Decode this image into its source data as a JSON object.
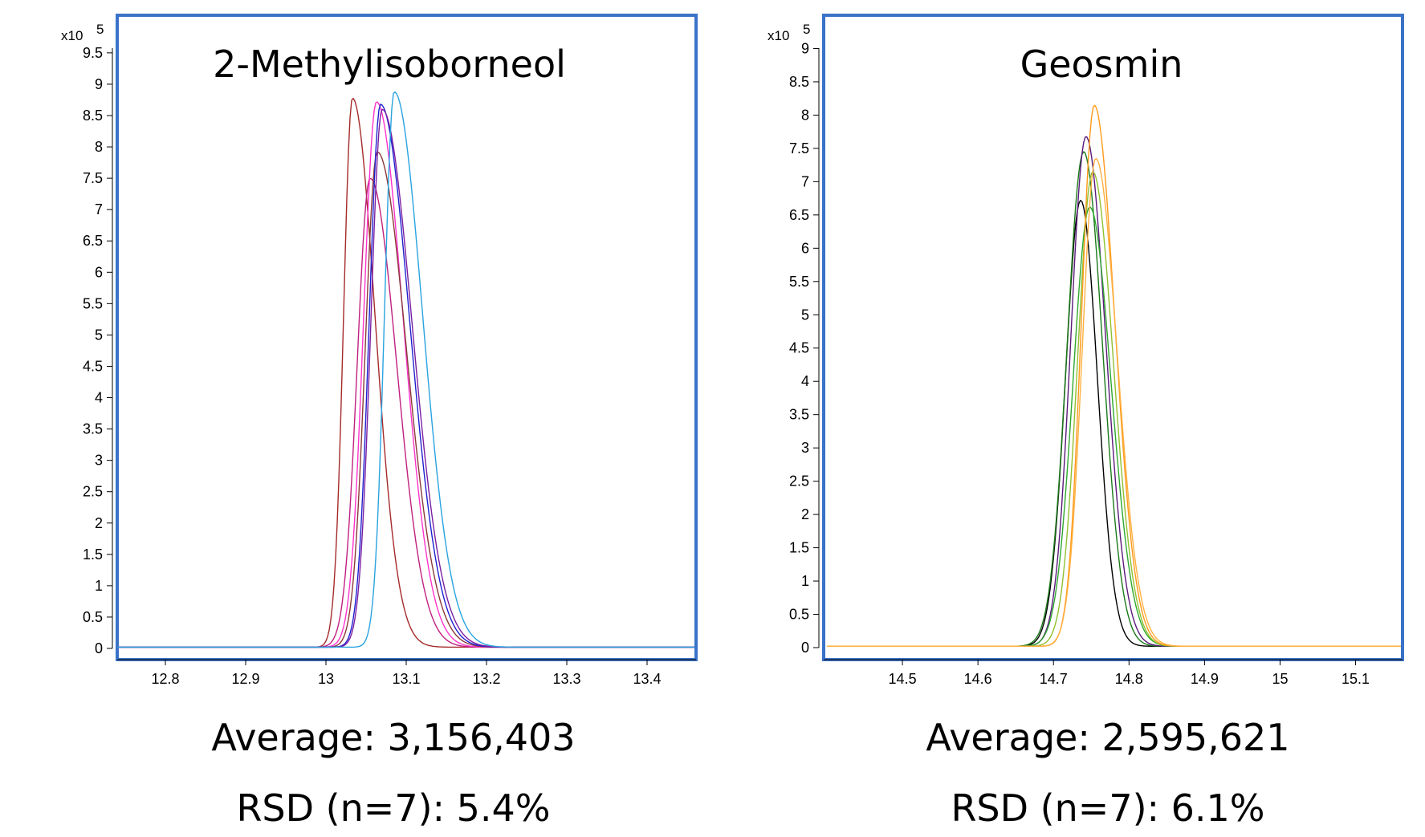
{
  "chart_data": [
    {
      "type": "line",
      "title": "2-Methylisoborneol",
      "exponent_label": "x10",
      "exponent_power": "5",
      "xlim": [
        12.74,
        13.46
      ],
      "ylim": [
        0,
        10.1
      ],
      "xticks": [
        12.8,
        12.9,
        13,
        13.1,
        13.2,
        13.3,
        13.4
      ],
      "xtick_labels": [
        "12.8",
        "12.9",
        "13",
        "13.1",
        "13.2",
        "13.3",
        "13.4"
      ],
      "yticks": [
        0,
        0.5,
        1,
        1.5,
        2,
        2.5,
        3,
        3.5,
        4,
        4.5,
        5,
        5.5,
        6,
        6.5,
        7,
        7.5,
        8,
        8.5,
        9,
        9.5
      ],
      "ytick_labels": [
        "0",
        "0.5",
        "1",
        "1.5",
        "2",
        "2.5",
        "3",
        "3.5",
        "4",
        "4.5",
        "5",
        "5.5",
        "6",
        "6.5",
        "7",
        "7.5",
        "8",
        "8.5",
        "9",
        "9.5"
      ],
      "baseline": 0.02,
      "grid": false,
      "average_text": "Average: 3,156,403",
      "rsd_text": "RSD (n=7): 5.4%",
      "series": [
        {
          "color": "#a52a2a",
          "peak_x": 13.033,
          "peak_y": 8.78,
          "sigma_left": 0.011,
          "sigma_right": 0.028
        },
        {
          "color": "#c02080",
          "peak_x": 13.055,
          "peak_y": 7.5,
          "sigma_left": 0.016,
          "sigma_right": 0.033
        },
        {
          "color": "#ff33cc",
          "peak_x": 13.063,
          "peak_y": 8.72,
          "sigma_left": 0.016,
          "sigma_right": 0.033
        },
        {
          "color": "#8b3a3a",
          "peak_x": 13.064,
          "peak_y": 7.92,
          "sigma_left": 0.015,
          "sigma_right": 0.036
        },
        {
          "color": "#2020d0",
          "peak_x": 13.068,
          "peak_y": 8.68,
          "sigma_left": 0.014,
          "sigma_right": 0.036
        },
        {
          "color": "#7a1fa2",
          "peak_x": 13.07,
          "peak_y": 8.6,
          "sigma_left": 0.014,
          "sigma_right": 0.037
        },
        {
          "color": "#29a3e0",
          "peak_x": 13.085,
          "peak_y": 8.88,
          "sigma_left": 0.012,
          "sigma_right": 0.035
        }
      ]
    },
    {
      "type": "line",
      "title": "Geosmin",
      "exponent_label": "x10",
      "exponent_power": "5",
      "xlim": [
        14.4,
        15.16
      ],
      "ylim": [
        0,
        9.5
      ],
      "xticks": [
        14.5,
        14.6,
        14.7,
        14.8,
        14.9,
        15,
        15.1
      ],
      "xtick_labels": [
        "14.5",
        "14.6",
        "14.7",
        "14.8",
        "14.9",
        "15",
        "15.1"
      ],
      "yticks": [
        0,
        0.5,
        1,
        1.5,
        2,
        2.5,
        3,
        3.5,
        4,
        4.5,
        5,
        5.5,
        6,
        6.5,
        7,
        7.5,
        8,
        8.5,
        9
      ],
      "ytick_labels": [
        "0",
        "0.5",
        "1",
        "1.5",
        "2",
        "2.5",
        "3",
        "3.5",
        "4",
        "4.5",
        "5",
        "5.5",
        "6",
        "6.5",
        "7",
        "7.5",
        "8",
        "8.5",
        "9"
      ],
      "baseline": 0.02,
      "grid": false,
      "average_text": "Average: 2,595,621",
      "rsd_text": "RSD (n=7): 6.1%",
      "series": [
        {
          "color": "#000000",
          "peak_x": 14.736,
          "peak_y": 6.72,
          "sigma_left": 0.02,
          "sigma_right": 0.022
        },
        {
          "color": "#1a7a1a",
          "peak_x": 14.74,
          "peak_y": 7.45,
          "sigma_left": 0.022,
          "sigma_right": 0.025
        },
        {
          "color": "#5a1a7a",
          "peak_x": 14.743,
          "peak_y": 7.68,
          "sigma_left": 0.02,
          "sigma_right": 0.026
        },
        {
          "color": "#2ea82e",
          "peak_x": 14.748,
          "peak_y": 6.62,
          "sigma_left": 0.022,
          "sigma_right": 0.028
        },
        {
          "color": "#90c030",
          "peak_x": 14.752,
          "peak_y": 7.15,
          "sigma_left": 0.02,
          "sigma_right": 0.027
        },
        {
          "color": "#ff9a1a",
          "peak_x": 14.754,
          "peak_y": 8.15,
          "sigma_left": 0.017,
          "sigma_right": 0.027
        },
        {
          "color": "#ffb040",
          "peak_x": 14.756,
          "peak_y": 7.35,
          "sigma_left": 0.018,
          "sigma_right": 0.028
        }
      ]
    }
  ]
}
